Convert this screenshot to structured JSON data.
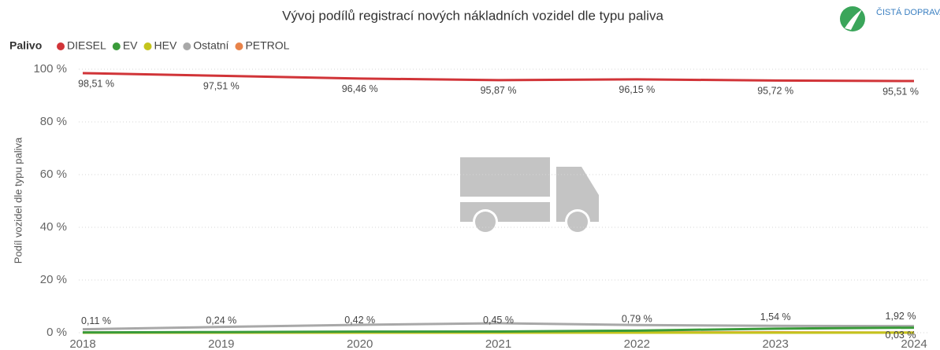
{
  "chart_data": {
    "type": "line",
    "title": "Vývoj podílů registrací nových nákladních vozidel dle typu paliva",
    "brand": "ČISTÁ DOPRAVA",
    "legend_title": "Palivo",
    "y_label": "Podíl vozidel dle typu paliva",
    "categories": [
      "2018",
      "2019",
      "2020",
      "2021",
      "2022",
      "2023",
      "2024"
    ],
    "series": [
      {
        "name": "DIESEL",
        "color": "#d13438",
        "values": [
          98.51,
          97.51,
          96.46,
          95.87,
          96.15,
          95.72,
          95.51
        ],
        "value_labels": [
          "98,51 %",
          "97,51 %",
          "96,46 %",
          "95,87 %",
          "96,15 %",
          "95,72 %",
          "95,51 %"
        ]
      },
      {
        "name": "EV",
        "color": "#3a9b3a",
        "values": [
          0.11,
          0.24,
          0.42,
          0.45,
          0.79,
          1.54,
          1.92
        ],
        "value_labels": [
          "0,11 %",
          "0,24 %",
          "0,42 %",
          "0,45 %",
          "0,79 %",
          "1,54 %",
          "1,92 %"
        ]
      },
      {
        "name": "HEV",
        "color": "#c4c41c",
        "values": [
          0,
          0,
          0,
          0,
          0,
          0,
          0.03
        ],
        "value_labels": [
          null,
          null,
          null,
          null,
          null,
          null,
          "0,03 %"
        ]
      },
      {
        "name": "Ostatní",
        "color": "#a8a8a8",
        "values": [
          1.3,
          2.2,
          3.0,
          3.6,
          2.9,
          2.6,
          2.5
        ]
      },
      {
        "name": "PETROL",
        "color": "#e8834a",
        "values": [
          0.08,
          0.05,
          0.12,
          0.08,
          0.1,
          0.14,
          0.04
        ]
      }
    ],
    "ylim": [
      0,
      100
    ],
    "yticks": [
      {
        "value": 0,
        "label": "0 %"
      },
      {
        "value": 20,
        "label": "20 %"
      },
      {
        "value": 40,
        "label": "40 %"
      },
      {
        "value": 60,
        "label": "60 %"
      },
      {
        "value": 80,
        "label": "80 %"
      },
      {
        "value": 100,
        "label": "100 %"
      }
    ],
    "grid": true
  }
}
